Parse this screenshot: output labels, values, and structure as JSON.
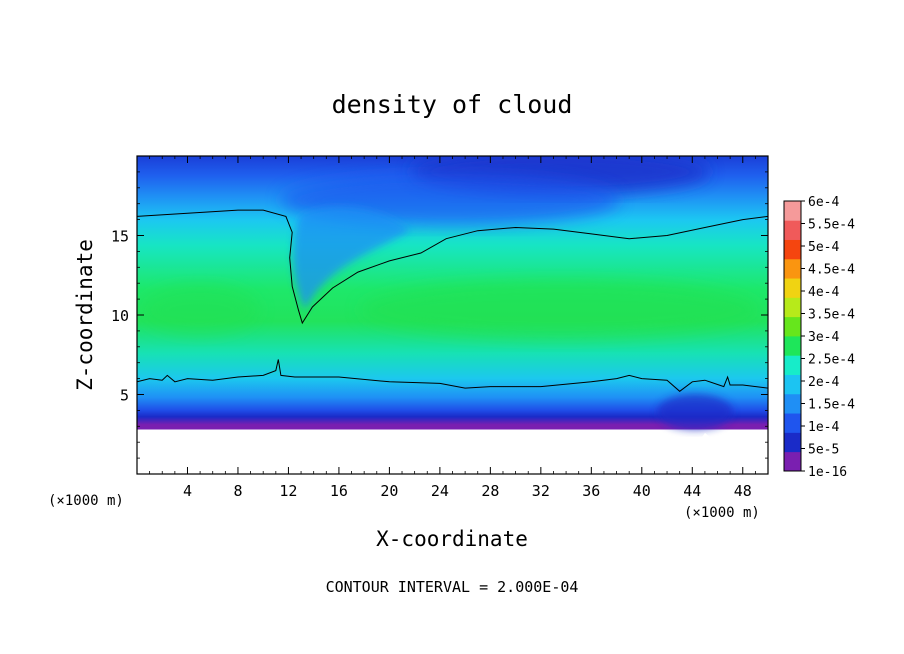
{
  "chart_data": {
    "type": "heatmap",
    "title": "density of cloud",
    "xlabel": "X-coordinate",
    "ylabel": "Z-coordinate",
    "x_unit": "(×1000 m)",
    "z_unit": "(×1000 m)",
    "xlim": [
      0,
      50
    ],
    "ylim": [
      0,
      20
    ],
    "xticks": [
      4,
      8,
      12,
      16,
      20,
      24,
      28,
      32,
      36,
      40,
      44,
      48
    ],
    "yticks": [
      5,
      10,
      15
    ],
    "note": "CONTOUR INTERVAL = 2.000E-04",
    "colorbar": {
      "levels": [
        "1e-16",
        "5e-5",
        "1e-4",
        "1.5e-4",
        "2e-4",
        "2.5e-4",
        "3e-4",
        "3.5e-4",
        "4e-4",
        "4.5e-4",
        "5e-4",
        "5.5e-4",
        "6e-4"
      ],
      "colors": [
        "#7a1fb0",
        "#1a2bc8",
        "#1f55ee",
        "#1f8ff5",
        "#1cc4f2",
        "#17ecc9",
        "#1ee65a",
        "#66e61c",
        "#b7ea1a",
        "#f0d312",
        "#fa9510",
        "#f5450f",
        "#f05a5a",
        "#f59a9a"
      ]
    },
    "contours": [
      {
        "level": "2.000E-04",
        "points": [
          [
            0,
            16.2
          ],
          [
            4,
            16.4
          ],
          [
            8,
            16.6
          ],
          [
            10,
            16.6
          ],
          [
            11.8,
            16.2
          ],
          [
            12.3,
            15.2
          ],
          [
            12.1,
            13.6
          ],
          [
            12.3,
            11.8
          ],
          [
            12.8,
            10.3
          ],
          [
            13.1,
            9.5
          ],
          [
            13.9,
            10.5
          ],
          [
            15.5,
            11.7
          ],
          [
            17.5,
            12.7
          ],
          [
            20,
            13.4
          ],
          [
            22.5,
            13.9
          ],
          [
            24.5,
            14.8
          ],
          [
            27,
            15.3
          ],
          [
            30,
            15.5
          ],
          [
            33,
            15.4
          ],
          [
            36,
            15.1
          ],
          [
            39,
            14.8
          ],
          [
            42,
            15.0
          ],
          [
            45,
            15.5
          ],
          [
            48,
            16.0
          ],
          [
            50,
            16.2
          ]
        ]
      },
      {
        "level": "2.000E-04",
        "points": [
          [
            0,
            5.8
          ],
          [
            1,
            6.0
          ],
          [
            2,
            5.9
          ],
          [
            2.4,
            6.2
          ],
          [
            3,
            5.8
          ],
          [
            4,
            6.0
          ],
          [
            6,
            5.9
          ],
          [
            8,
            6.1
          ],
          [
            10,
            6.2
          ],
          [
            11,
            6.5
          ],
          [
            11.2,
            7.2
          ],
          [
            11.4,
            6.2
          ],
          [
            12.5,
            6.1
          ],
          [
            16,
            6.1
          ],
          [
            20,
            5.8
          ],
          [
            24,
            5.7
          ],
          [
            26,
            5.4
          ],
          [
            28,
            5.5
          ],
          [
            32,
            5.5
          ],
          [
            36,
            5.8
          ],
          [
            38,
            6.0
          ],
          [
            39,
            6.2
          ],
          [
            40,
            6.0
          ],
          [
            42,
            5.9
          ],
          [
            43,
            5.2
          ],
          [
            44,
            5.8
          ],
          [
            45,
            5.9
          ],
          [
            46.5,
            5.5
          ],
          [
            46.8,
            6.1
          ],
          [
            47,
            5.6
          ],
          [
            48,
            5.6
          ],
          [
            50,
            5.4
          ]
        ]
      }
    ]
  }
}
